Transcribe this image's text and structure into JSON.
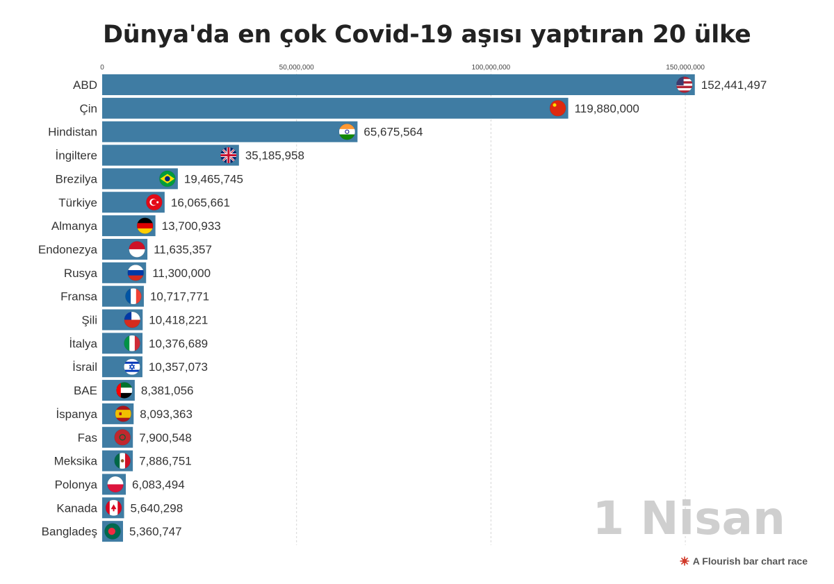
{
  "chart_data": {
    "type": "bar",
    "orientation": "horizontal",
    "title": "Dünya'da en çok Covid-19 aşısı yaptıran 20 ülke",
    "date_label": "1 Nisan",
    "xlim": [
      0,
      165000000
    ],
    "xticks": [
      {
        "value": 0,
        "label": "0"
      },
      {
        "value": 50000000,
        "label": "50,000,000"
      },
      {
        "value": 100000000,
        "label": "100,000,000"
      },
      {
        "value": 150000000,
        "label": "150,000,000"
      }
    ],
    "grid": true,
    "bar_color": "#3f7ca3",
    "categories": [
      "ABD",
      "Çin",
      "Hindistan",
      "İngiltere",
      "Brezilya",
      "Türkiye",
      "Almanya",
      "Endonezya",
      "Rusya",
      "Fransa",
      "Şili",
      "İtalya",
      "İsrail",
      "BAE",
      "İspanya",
      "Fas",
      "Meksika",
      "Polonya",
      "Kanada",
      "Bangladeş"
    ],
    "values": [
      152441497,
      119880000,
      65675564,
      35185958,
      19465745,
      16065661,
      13700933,
      11635357,
      11300000,
      10717771,
      10418221,
      10376689,
      10357073,
      8381056,
      8093363,
      7900548,
      7886751,
      6083494,
      5640298,
      5360747
    ],
    "value_labels": [
      "152,441,497",
      "119,880,000",
      "65,675,564",
      "35,185,958",
      "19,465,745",
      "16,065,661",
      "13,700,933",
      "11,635,357",
      "11,300,000",
      "10,717,771",
      "10,418,221",
      "10,376,689",
      "10,357,073",
      "8,381,056",
      "8,093,363",
      "7,900,548",
      "7,886,751",
      "6,083,494",
      "5,640,298",
      "5,360,747"
    ],
    "flag_icons": [
      "usa-flag-icon",
      "china-flag-icon",
      "india-flag-icon",
      "uk-flag-icon",
      "brazil-flag-icon",
      "turkey-flag-icon",
      "germany-flag-icon",
      "indonesia-flag-icon",
      "russia-flag-icon",
      "france-flag-icon",
      "chile-flag-icon",
      "italy-flag-icon",
      "israel-flag-icon",
      "uae-flag-icon",
      "spain-flag-icon",
      "morocco-flag-icon",
      "mexico-flag-icon",
      "poland-flag-icon",
      "canada-flag-icon",
      "bangladesh-flag-icon"
    ]
  },
  "footer": {
    "credit": "A Flourish bar chart race",
    "credit_icon": "flourish-logo-icon",
    "credit_color": "#d13a2a"
  }
}
